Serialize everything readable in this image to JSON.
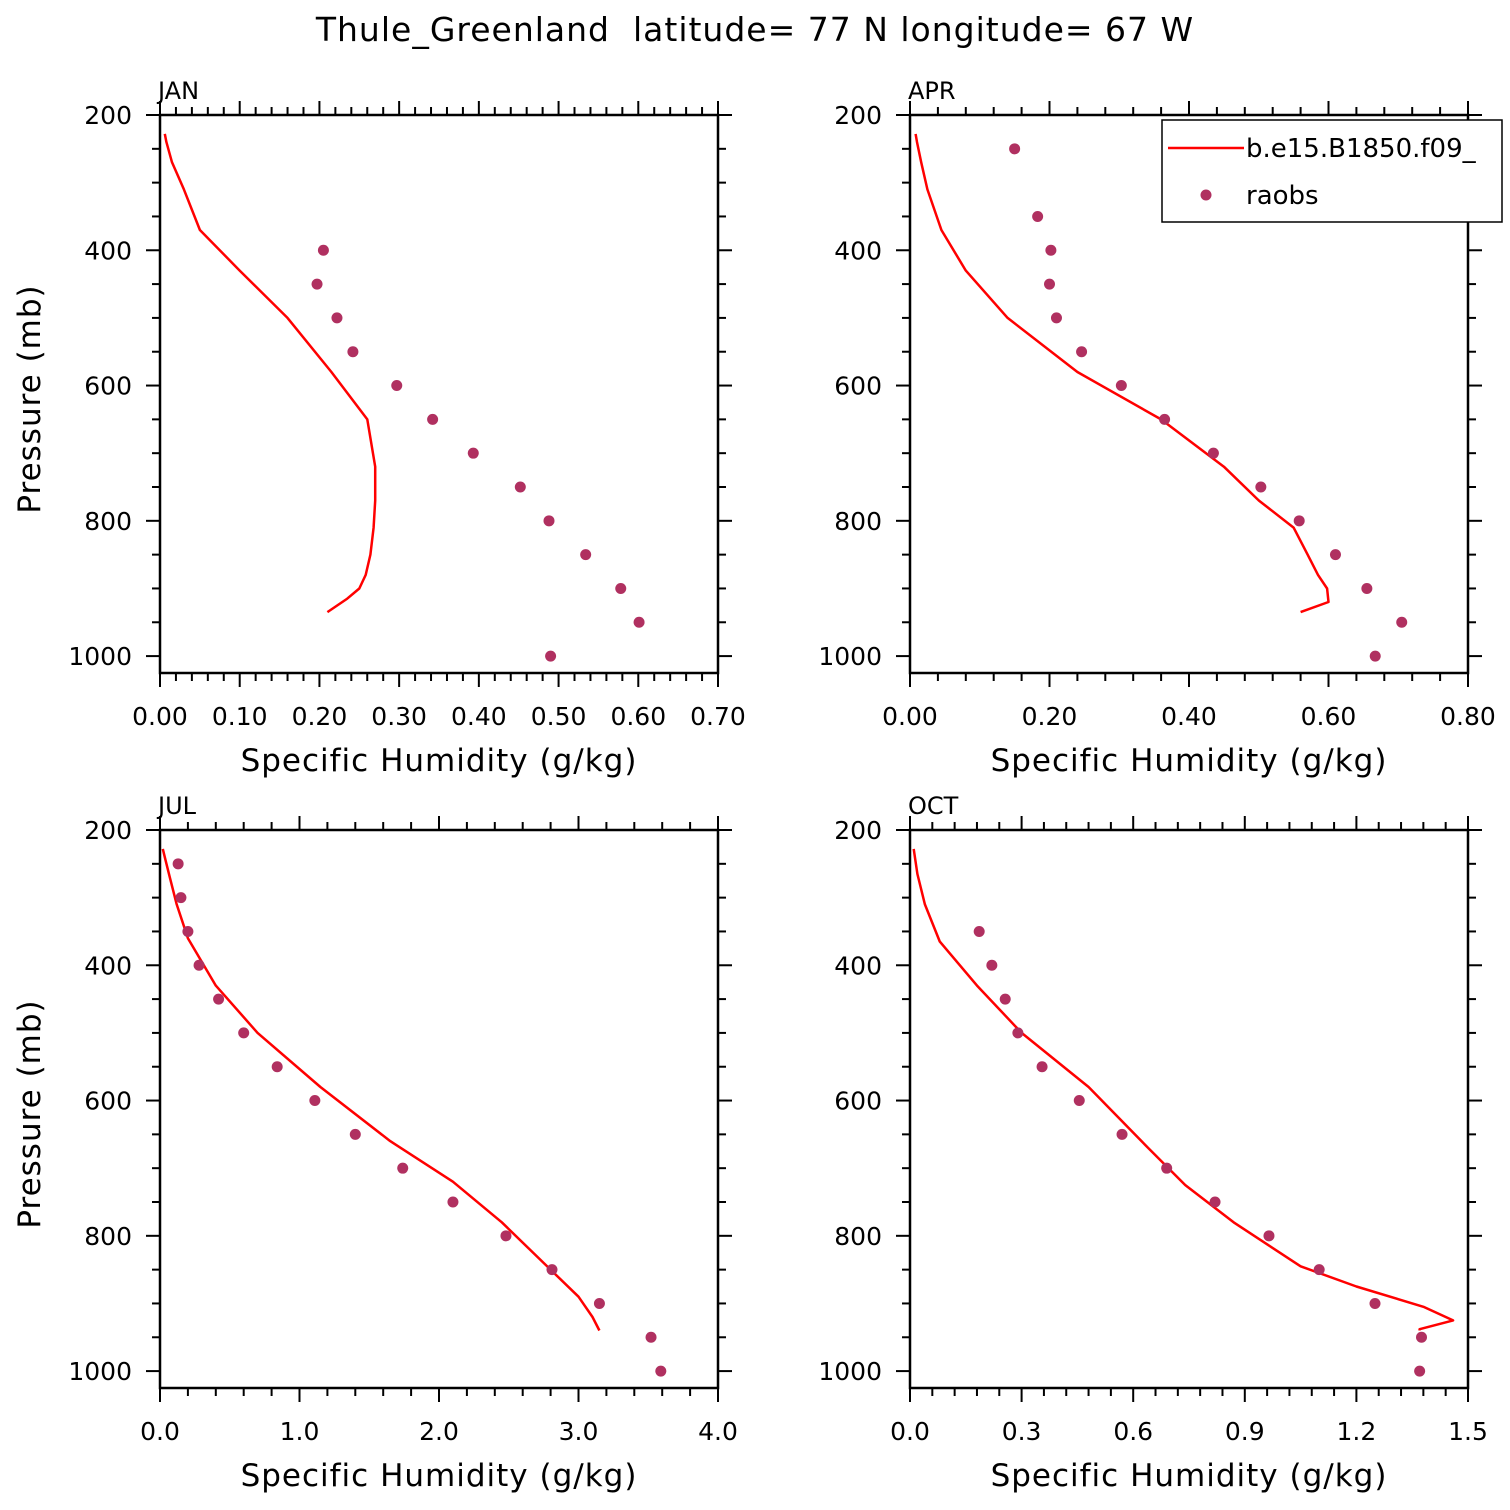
{
  "title": "Thule_Greenland  latitude= 77 N longitude= 67 W",
  "colors": {
    "model": "#ff0000",
    "obs": "#b03060"
  },
  "chart_data": [
    {
      "type": "line",
      "panel": "JAN",
      "xlabel": "Specific Humidity (g/kg)",
      "ylabel": "Pressure (mb)",
      "xlim": [
        0,
        0.7
      ],
      "ylim": [
        200,
        1025
      ],
      "y_reversed": true,
      "xticks": [
        0,
        0.1,
        0.2,
        0.3,
        0.4,
        0.5,
        0.6,
        0.7
      ],
      "xtick_labels": [
        "0.00",
        "0.10",
        "0.20",
        "0.30",
        "0.40",
        "0.50",
        "0.60",
        "0.70"
      ],
      "yticks": [
        200,
        400,
        600,
        800,
        1000
      ],
      "ytick_labels": [
        "200",
        "400",
        "600",
        "800",
        "1000"
      ],
      "legend": null,
      "series": [
        {
          "name": "b.e15.B1850.f09_",
          "kind": "line",
          "x": [
            0.21,
            0.235,
            0.25,
            0.258,
            0.264,
            0.268,
            0.27,
            0.27,
            0.26,
            0.215,
            0.16,
            0.1,
            0.05,
            0.03,
            0.015,
            0.008,
            0.006
          ],
          "y": [
            935,
            915,
            900,
            880,
            850,
            810,
            770,
            720,
            650,
            580,
            500,
            430,
            370,
            310,
            270,
            240,
            228
          ]
        },
        {
          "name": "raobs",
          "kind": "scatter",
          "x": [
            0.205,
            0.197,
            0.222,
            0.242,
            0.297,
            0.342,
            0.393,
            0.452,
            0.488,
            0.534,
            0.578,
            0.601,
            0.49
          ],
          "y": [
            400,
            450,
            500,
            550,
            600,
            650,
            700,
            750,
            800,
            850,
            900,
            950,
            1000
          ]
        }
      ]
    },
    {
      "type": "line",
      "panel": "APR",
      "xlabel": "Specific Humidity (g/kg)",
      "ylabel": "",
      "xlim": [
        0,
        0.8
      ],
      "ylim": [
        200,
        1025
      ],
      "y_reversed": true,
      "xticks": [
        0,
        0.2,
        0.4,
        0.6,
        0.8
      ],
      "xtick_labels": [
        "0.00",
        "0.20",
        "0.40",
        "0.60",
        "0.80"
      ],
      "yticks": [
        200,
        400,
        600,
        800,
        1000
      ],
      "ytick_labels": [
        "200",
        "400",
        "600",
        "800",
        "1000"
      ],
      "legend": {
        "placement": "top-right",
        "entries": [
          {
            "label": "b.e15.B1850.f09_",
            "kind": "line"
          },
          {
            "label": "raobs",
            "kind": "marker"
          }
        ]
      },
      "series": [
        {
          "name": "b.e15.B1850.f09_",
          "kind": "line",
          "x": [
            0.56,
            0.6,
            0.598,
            0.585,
            0.57,
            0.55,
            0.5,
            0.45,
            0.36,
            0.24,
            0.14,
            0.08,
            0.045,
            0.025,
            0.016,
            0.01,
            0.008
          ],
          "y": [
            935,
            920,
            900,
            880,
            850,
            810,
            770,
            720,
            650,
            580,
            500,
            430,
            370,
            310,
            270,
            240,
            228
          ]
        },
        {
          "name": "raobs",
          "kind": "scatter",
          "x": [
            0.15,
            0.183,
            0.202,
            0.2,
            0.21,
            0.246,
            0.303,
            0.365,
            0.435,
            0.503,
            0.558,
            0.61,
            0.655,
            0.705,
            0.667
          ],
          "y": [
            250,
            350,
            400,
            450,
            500,
            550,
            600,
            650,
            700,
            750,
            800,
            850,
            900,
            950,
            1000
          ]
        }
      ]
    },
    {
      "type": "line",
      "panel": "JUL",
      "xlabel": "Specific Humidity (g/kg)",
      "ylabel": "Pressure (mb)",
      "xlim": [
        0,
        4.0
      ],
      "ylim": [
        200,
        1025
      ],
      "y_reversed": true,
      "xticks": [
        0,
        1,
        2,
        3,
        4
      ],
      "xtick_labels": [
        "0.0",
        "1.0",
        "2.0",
        "3.0",
        "4.0"
      ],
      "yticks": [
        200,
        400,
        600,
        800,
        1000
      ],
      "ytick_labels": [
        "200",
        "400",
        "600",
        "800",
        "1000"
      ],
      "legend": null,
      "series": [
        {
          "name": "b.e15.B1850.f09_",
          "kind": "line",
          "x": [
            3.15,
            3.1,
            3.0,
            2.75,
            2.45,
            2.1,
            1.65,
            1.15,
            0.7,
            0.4,
            0.2,
            0.12,
            0.07,
            0.04,
            0.02
          ],
          "y": [
            940,
            920,
            890,
            840,
            780,
            720,
            660,
            580,
            500,
            430,
            360,
            310,
            270,
            245,
            228
          ]
        },
        {
          "name": "raobs",
          "kind": "scatter",
          "x": [
            0.13,
            0.15,
            0.2,
            0.28,
            0.42,
            0.6,
            0.84,
            1.11,
            1.4,
            1.74,
            2.1,
            2.48,
            2.81,
            3.15,
            3.52,
            3.59
          ],
          "y": [
            250,
            300,
            350,
            400,
            450,
            500,
            550,
            600,
            650,
            700,
            750,
            800,
            850,
            900,
            950,
            1000
          ]
        }
      ]
    },
    {
      "type": "line",
      "panel": "OCT",
      "xlabel": "Specific Humidity (g/kg)",
      "ylabel": "",
      "xlim": [
        0,
        1.5
      ],
      "ylim": [
        200,
        1025
      ],
      "y_reversed": true,
      "xticks": [
        0,
        0.3,
        0.6,
        0.9,
        1.2,
        1.5
      ],
      "xtick_labels": [
        "0.0",
        "0.3",
        "0.6",
        "0.9",
        "1.2",
        "1.5"
      ],
      "yticks": [
        200,
        400,
        600,
        800,
        1000
      ],
      "ytick_labels": [
        "200",
        "400",
        "600",
        "800",
        "1000"
      ],
      "legend": null,
      "series": [
        {
          "name": "b.e15.B1850.f09_",
          "kind": "line",
          "x": [
            1.37,
            1.37,
            1.46,
            1.38,
            1.2,
            1.05,
            0.87,
            0.74,
            0.64,
            0.48,
            0.3,
            0.18,
            0.08,
            0.04,
            0.02,
            0.01
          ],
          "y": [
            940,
            938,
            925,
            905,
            875,
            845,
            780,
            725,
            670,
            580,
            500,
            430,
            365,
            310,
            265,
            228
          ]
        },
        {
          "name": "raobs",
          "kind": "scatter",
          "x": [
            0.186,
            0.22,
            0.256,
            0.29,
            0.355,
            0.455,
            0.57,
            0.69,
            0.82,
            0.965,
            1.1,
            1.25,
            1.375,
            1.37
          ],
          "y": [
            350,
            400,
            450,
            500,
            550,
            600,
            650,
            700,
            750,
            800,
            850,
            900,
            950,
            1000
          ]
        }
      ]
    }
  ]
}
